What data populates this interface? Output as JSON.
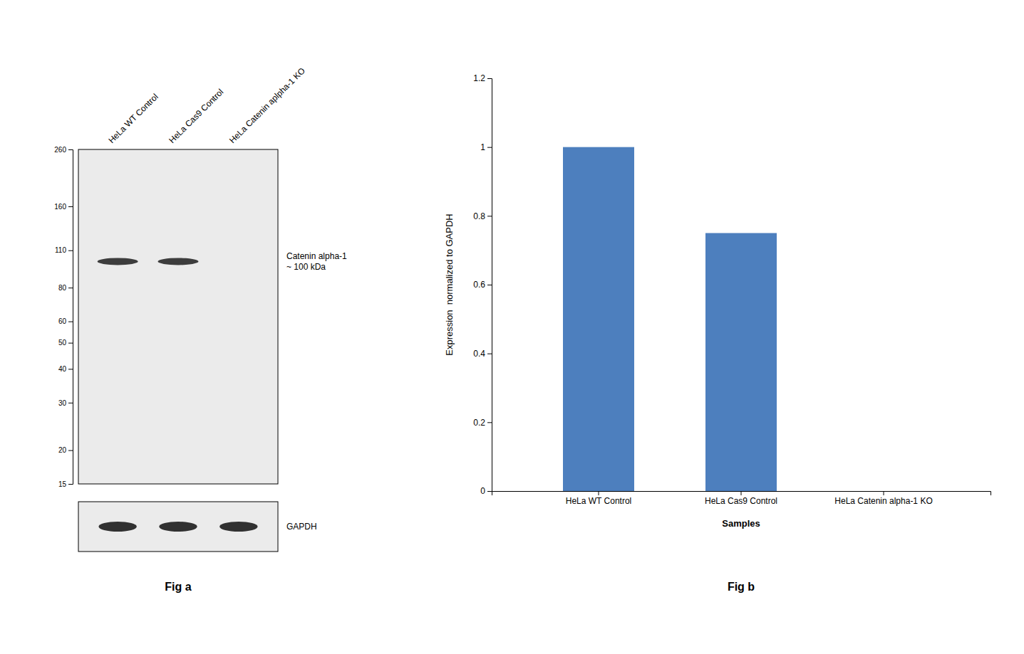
{
  "chart_data": [
    {
      "type": "western_blot",
      "title": "Fig a",
      "categories": [
        "HeLa WT Control",
        "HeLa Cas9 Control",
        "HeLa Catenin aplpha-1 KO"
      ],
      "values": [
        100,
        100,
        null
      ],
      "log": "y",
      "ylim": [
        15,
        260
      ],
      "yticks": [
        260,
        160,
        110,
        80,
        60,
        50,
        40,
        30,
        20,
        15
      ],
      "annotations": [
        "Catenin alpha-1\n~ 100 kDa",
        "GAPDH"
      ]
    },
    {
      "type": "bar",
      "title": "Fig b",
      "categories": [
        "HeLa WT Control",
        "HeLa Cas9 Control",
        "HeLa Catenin alpha-1 KO"
      ],
      "values": [
        1.0,
        0.75,
        0.0
      ],
      "color": "#4d7fbe",
      "ylabel": "Expression  normalized to GAPDH",
      "xlabel": "Samples",
      "ylim": [
        0,
        1.2
      ],
      "yticks": [
        0,
        0.2,
        0.4,
        0.6,
        0.8,
        1.0,
        1.2
      ]
    }
  ]
}
